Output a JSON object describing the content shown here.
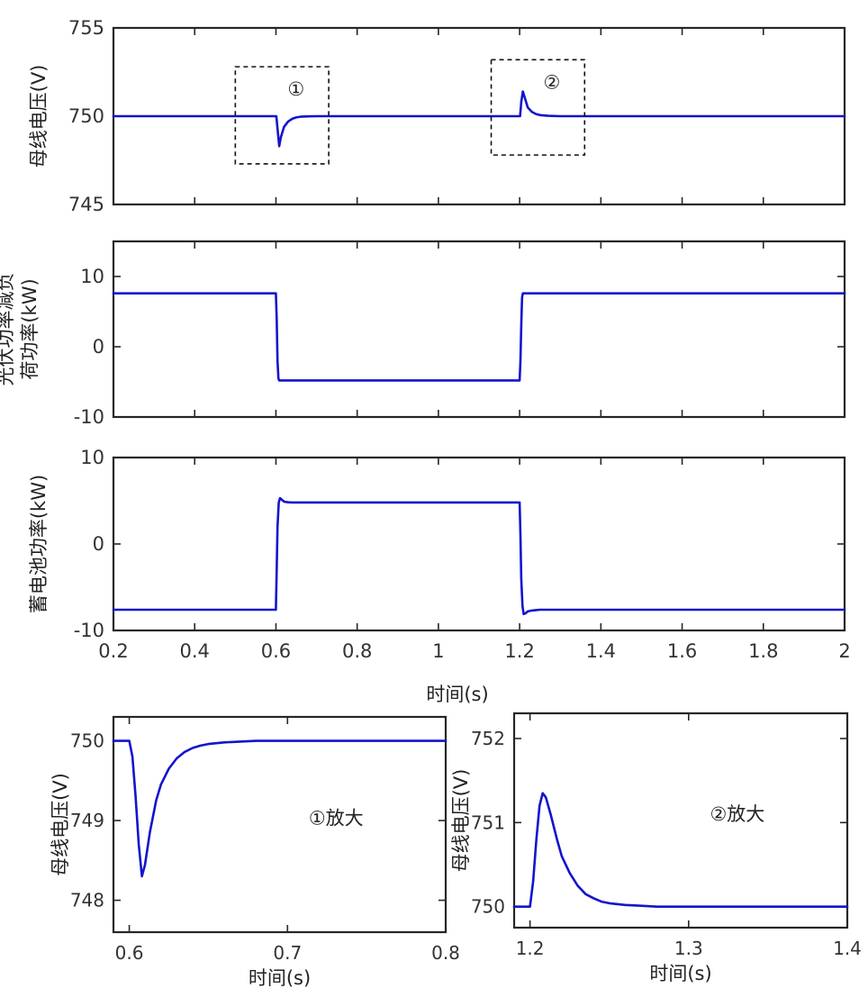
{
  "chart_data": [
    {
      "id": "voltage",
      "type": "line",
      "ylabel": "母线电压(V)",
      "xlim": [
        0.2,
        2
      ],
      "ylim": [
        745,
        755
      ],
      "yticks": [
        745,
        750,
        755
      ],
      "series": [
        {
          "name": "母线电压",
          "x": [
            0.2,
            0.6,
            0.601,
            0.604,
            0.608,
            0.612,
            0.62,
            0.63,
            0.64,
            0.65,
            0.66,
            0.68,
            0.7,
            0.8,
            1.0,
            1.2,
            1.201,
            1.204,
            1.208,
            1.212,
            1.22,
            1.23,
            1.24,
            1.25,
            1.27,
            1.3,
            1.4,
            1.6,
            2.0
          ],
          "y": [
            750,
            750,
            750,
            749.3,
            748.3,
            748.8,
            749.4,
            749.7,
            749.85,
            749.93,
            749.97,
            749.99,
            750,
            750,
            750,
            750,
            750,
            750.8,
            751.4,
            751.1,
            750.5,
            750.25,
            750.12,
            750.06,
            750.02,
            750,
            750,
            750,
            750
          ]
        }
      ],
      "annotations": [
        {
          "label": "①",
          "x_range": [
            0.5,
            0.73
          ],
          "y_range": [
            747.3,
            752.8
          ]
        },
        {
          "label": "②",
          "x_range": [
            1.13,
            1.36
          ],
          "y_range": [
            747.8,
            753.2
          ]
        }
      ]
    },
    {
      "id": "pv_minus_load",
      "type": "line",
      "ylabel": [
        "光伏功率减负",
        "荷功率(kW)"
      ],
      "xlim": [
        0.2,
        2
      ],
      "ylim": [
        -10,
        15
      ],
      "yticks": [
        -10,
        0,
        10
      ],
      "series": [
        {
          "name": "光伏功率减负荷功率",
          "x": [
            0.2,
            0.6,
            0.602,
            0.604,
            0.606,
            0.608,
            1.2,
            1.202,
            1.204,
            1.206,
            1.208,
            2.0
          ],
          "y": [
            7.6,
            7.6,
            4,
            -2,
            -4.5,
            -4.8,
            -4.8,
            -2,
            3,
            7,
            7.6,
            7.6
          ]
        }
      ]
    },
    {
      "id": "battery",
      "type": "line",
      "ylabel": "蓄电池功率(kW)",
      "xlim": [
        0.2,
        2
      ],
      "ylim": [
        -10,
        10
      ],
      "yticks": [
        -10,
        0,
        10
      ],
      "xticks": [
        0.2,
        0.4,
        0.6,
        0.8,
        1,
        1.2,
        1.4,
        1.6,
        1.8,
        2
      ],
      "xlabel": "时间(s)",
      "series": [
        {
          "name": "蓄电池功率",
          "x": [
            0.2,
            0.6,
            0.602,
            0.604,
            0.607,
            0.61,
            0.615,
            0.62,
            0.63,
            0.64,
            0.65,
            1.2,
            1.202,
            1.204,
            1.207,
            1.21,
            1.215,
            1.22,
            1.23,
            1.24,
            1.25,
            2.0
          ],
          "y": [
            -7.6,
            -7.6,
            -3,
            2,
            4.8,
            5.3,
            5.1,
            4.9,
            4.82,
            4.8,
            4.8,
            4.8,
            1,
            -4,
            -7.2,
            -8.1,
            -8.0,
            -7.8,
            -7.7,
            -7.65,
            -7.6,
            -7.6
          ]
        }
      ]
    },
    {
      "id": "zoom1",
      "type": "line",
      "ylabel": "母线电压(V)",
      "xlabel": "时间(s)",
      "xlim": [
        0.59,
        0.8
      ],
      "ylim": [
        747.6,
        750.3
      ],
      "xticks": [
        0.6,
        0.7,
        0.8
      ],
      "yticks": [
        748,
        749,
        750
      ],
      "annotation": "①放大",
      "series": [
        {
          "name": "母线电压",
          "x": [
            0.59,
            0.6,
            0.602,
            0.604,
            0.606,
            0.608,
            0.61,
            0.613,
            0.617,
            0.62,
            0.625,
            0.63,
            0.635,
            0.64,
            0.645,
            0.65,
            0.66,
            0.67,
            0.68,
            0.7,
            0.8
          ],
          "y": [
            750,
            750,
            749.8,
            749.3,
            748.7,
            748.3,
            748.45,
            748.85,
            749.25,
            749.45,
            749.65,
            749.78,
            749.86,
            749.91,
            749.94,
            749.96,
            749.98,
            749.99,
            750,
            750,
            750
          ]
        }
      ]
    },
    {
      "id": "zoom2",
      "type": "line",
      "ylabel": "母线电压(V)",
      "xlabel": "时间(s)",
      "xlim": [
        1.19,
        1.4
      ],
      "ylim": [
        749.75,
        752.3
      ],
      "xticks": [
        1.2,
        1.3,
        1.4
      ],
      "yticks": [
        750,
        751,
        752
      ],
      "annotation": "②放大",
      "series": [
        {
          "name": "母线电压",
          "x": [
            1.19,
            1.2,
            1.202,
            1.204,
            1.206,
            1.208,
            1.21,
            1.213,
            1.217,
            1.22,
            1.225,
            1.23,
            1.235,
            1.24,
            1.245,
            1.25,
            1.26,
            1.27,
            1.28,
            1.3,
            1.4
          ],
          "y": [
            750,
            750,
            750.3,
            750.8,
            751.2,
            751.35,
            751.3,
            751.1,
            750.8,
            750.6,
            750.4,
            750.25,
            750.15,
            750.1,
            750.06,
            750.04,
            750.02,
            750.01,
            750,
            750,
            750
          ]
        }
      ]
    }
  ]
}
